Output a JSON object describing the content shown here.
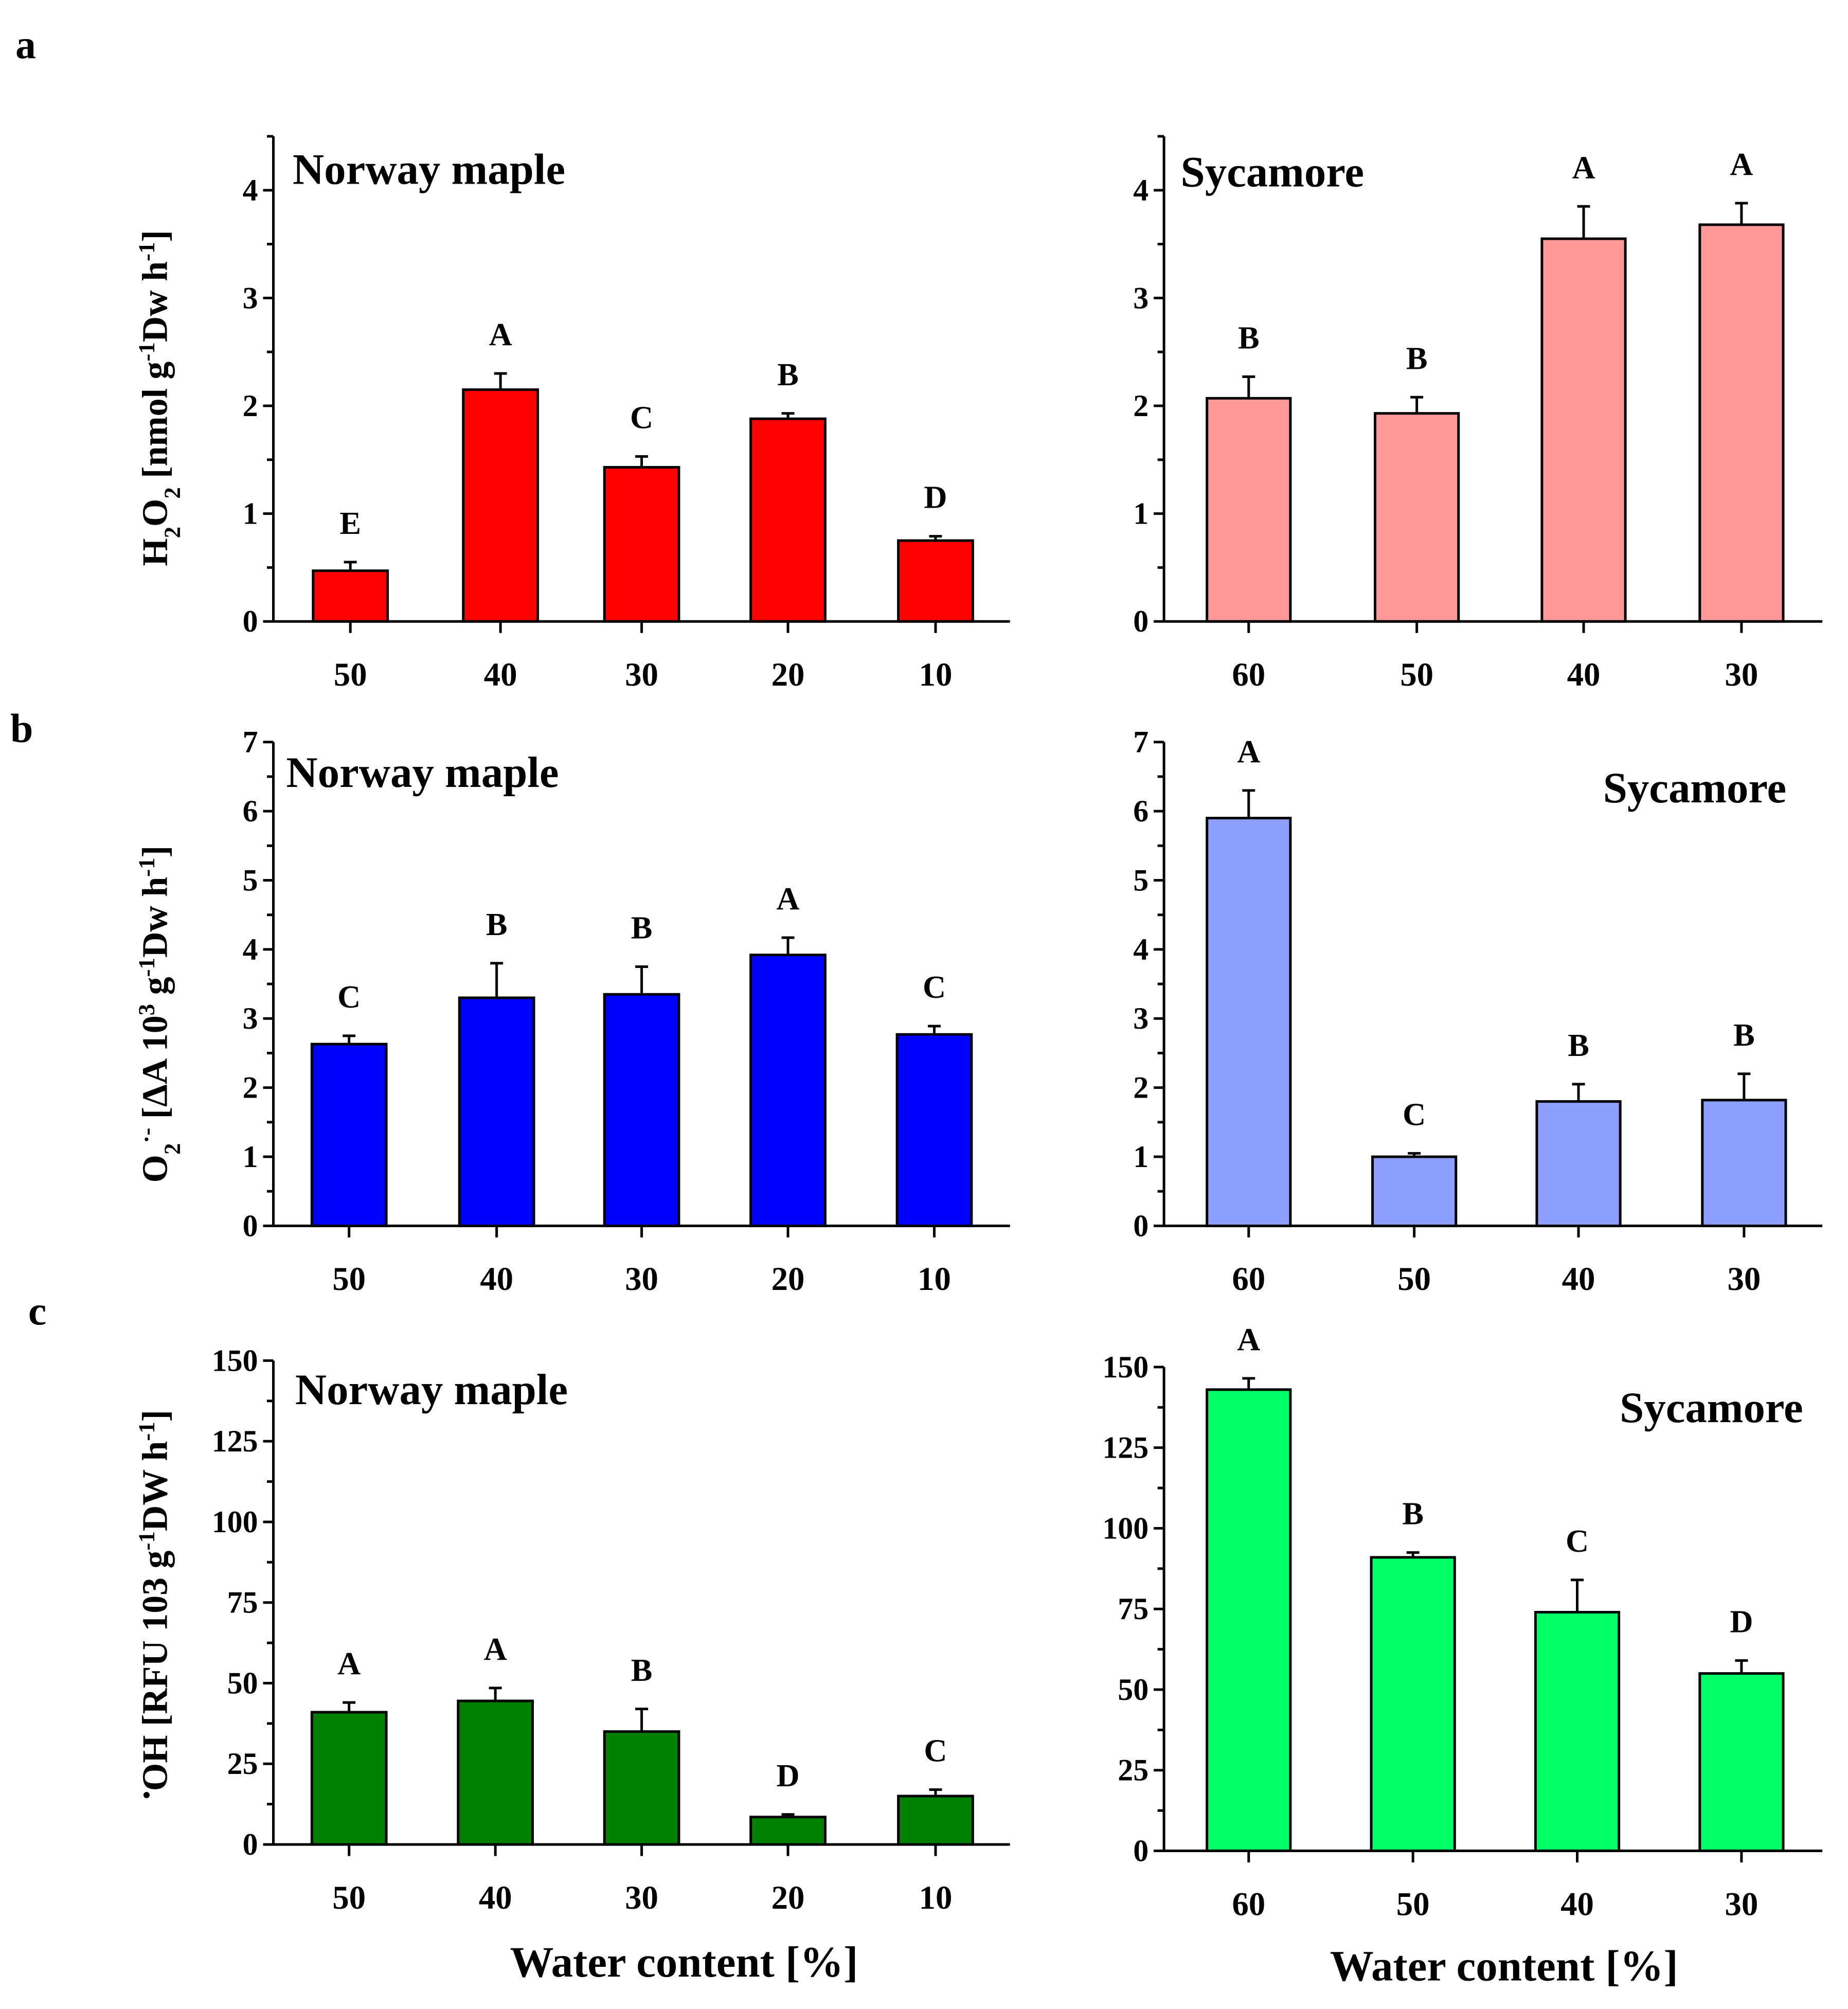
{
  "panel_letters": [
    "a",
    "b",
    "c"
  ],
  "x_axis_label": "Water content [%]",
  "chart_data": [
    {
      "type": "bar",
      "panel": "a",
      "title": "Norway maple",
      "title_align": "left",
      "color": "#ff0000",
      "ylabel_parts": [
        [
          "H",
          ""
        ],
        [
          "2",
          "sub"
        ],
        [
          "O",
          ""
        ],
        [
          "2",
          "sub"
        ],
        [
          " [nmol g",
          ""
        ],
        [
          "-1",
          "sup"
        ],
        [
          "Dw h",
          ""
        ],
        [
          "-1",
          "sup"
        ],
        [
          "]",
          ""
        ]
      ],
      "categories": [
        "50",
        "40",
        "30",
        "20",
        "10"
      ],
      "values": [
        0.47,
        2.15,
        1.43,
        1.88,
        0.75
      ],
      "errors": [
        0.08,
        0.15,
        0.1,
        0.05,
        0.04
      ],
      "letters": [
        "E",
        "A",
        "C",
        "B",
        "D"
      ],
      "ylim": [
        0,
        4.5
      ],
      "yticks": [
        0,
        1,
        2,
        3,
        4
      ],
      "minor_step": 0.5,
      "grid": false
    },
    {
      "type": "bar",
      "panel": "a",
      "title": "Sycamore",
      "title_align": "left",
      "color": "#ff9999",
      "categories": [
        "60",
        "50",
        "40",
        "30"
      ],
      "values": [
        2.07,
        1.93,
        3.55,
        3.68
      ],
      "errors": [
        0.2,
        0.15,
        0.3,
        0.2
      ],
      "letters": [
        "B",
        "B",
        "A",
        "A"
      ],
      "ylim": [
        0,
        4.5
      ],
      "yticks": [
        0,
        1,
        2,
        3,
        4
      ],
      "minor_step": 0.5,
      "grid": false
    },
    {
      "type": "bar",
      "panel": "b",
      "title": "Norway maple",
      "title_align": "left",
      "color": "#0000ff",
      "ylabel_parts": [
        [
          "O",
          ""
        ],
        [
          "2",
          "sub"
        ],
        [
          "·-",
          "sup"
        ],
        [
          " [ΔA 10",
          ""
        ],
        [
          "3",
          "sup"
        ],
        [
          " g",
          ""
        ],
        [
          "-1",
          "sup"
        ],
        [
          "Dw h",
          ""
        ],
        [
          "-1",
          "sup"
        ],
        [
          "]",
          ""
        ]
      ],
      "categories": [
        "50",
        "40",
        "30",
        "20",
        "10"
      ],
      "values": [
        2.63,
        3.3,
        3.35,
        3.92,
        2.77
      ],
      "errors": [
        0.12,
        0.5,
        0.4,
        0.25,
        0.12
      ],
      "letters": [
        "C",
        "B",
        "B",
        "A",
        "C"
      ],
      "ylim": [
        0,
        7
      ],
      "yticks": [
        0,
        1,
        2,
        3,
        4,
        5,
        6,
        7
      ],
      "minor_step": 0.5,
      "grid": false
    },
    {
      "type": "bar",
      "panel": "b",
      "title": "Sycamore",
      "title_align": "right",
      "color": "#8c9eff",
      "categories": [
        "60",
        "50",
        "40",
        "30"
      ],
      "values": [
        5.9,
        1.0,
        1.8,
        1.82
      ],
      "errors": [
        0.4,
        0.05,
        0.25,
        0.38
      ],
      "letters": [
        "A",
        "C",
        "B",
        "B"
      ],
      "ylim": [
        0,
        7
      ],
      "yticks": [
        0,
        1,
        2,
        3,
        4,
        5,
        6,
        7
      ],
      "minor_step": 0.5,
      "grid": false
    },
    {
      "type": "bar",
      "panel": "c",
      "title": "Norway maple",
      "title_align": "left",
      "color": "#008000",
      "ylabel_parts": [
        [
          "•",
          "sup"
        ],
        [
          "OH [RFU 103 g",
          ""
        ],
        [
          "-1",
          "sup"
        ],
        [
          "DW h",
          ""
        ],
        [
          "-1",
          "sup"
        ],
        [
          "]",
          ""
        ]
      ],
      "categories": [
        "50",
        "40",
        "30",
        "20",
        "10"
      ],
      "values": [
        41,
        44.5,
        35,
        8.5,
        15
      ],
      "errors": [
        3,
        4,
        7,
        0.8,
        2
      ],
      "letters": [
        "A",
        "A",
        "B",
        "D",
        "C"
      ],
      "ylim": [
        0,
        150
      ],
      "yticks": [
        0,
        25,
        50,
        75,
        100,
        125,
        150
      ],
      "minor_step": 12.5,
      "grid": false
    },
    {
      "type": "bar",
      "panel": "c",
      "title": "Sycamore",
      "title_align": "right",
      "color": "#00ff66",
      "categories": [
        "60",
        "50",
        "40",
        "30"
      ],
      "values": [
        143,
        91,
        74,
        55
      ],
      "errors": [
        3.5,
        1.5,
        10,
        4
      ],
      "letters": [
        "A",
        "B",
        "C",
        "D"
      ],
      "ylim": [
        0,
        150
      ],
      "yticks": [
        0,
        25,
        50,
        75,
        100,
        125,
        150
      ],
      "minor_step": 12.5,
      "grid": false
    }
  ]
}
